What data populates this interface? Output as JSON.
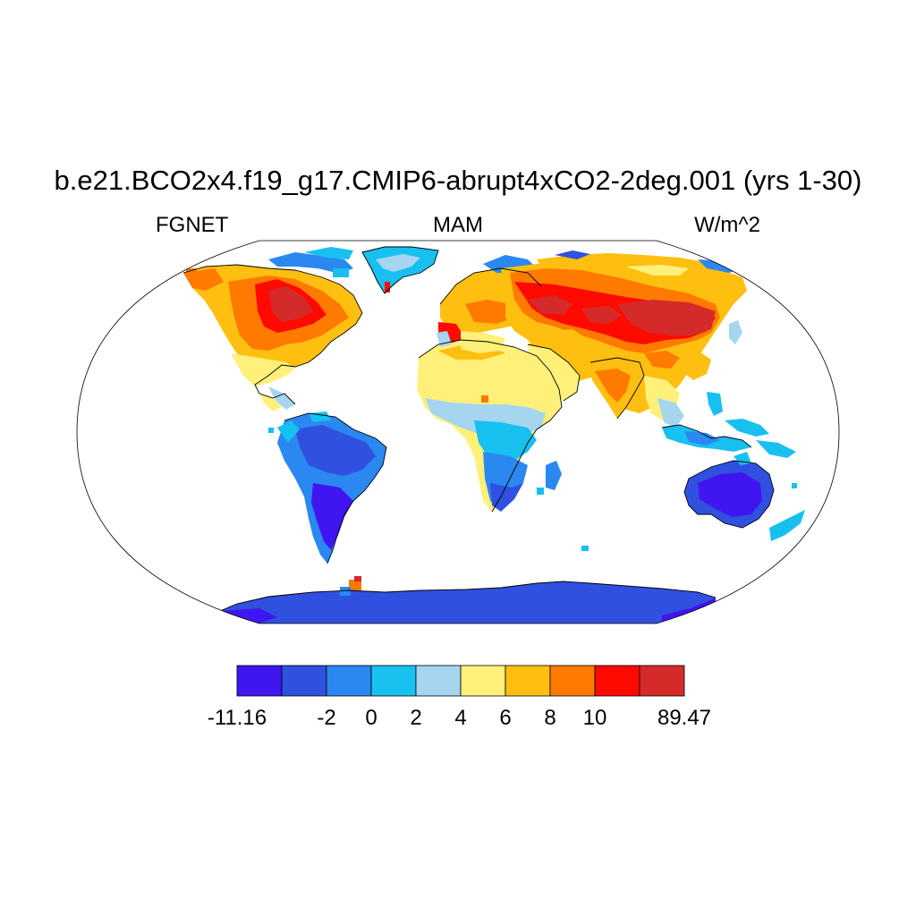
{
  "title": "b.e21.BCO2x4.f19_g17.CMIP6-abrupt4xCO2-2deg.001 (yrs 1-30)",
  "left_label": "FGNET",
  "center_label": "MAM",
  "right_label": "W/m^2",
  "colorbar": {
    "colors": [
      "#4016f0",
      "#3050e0",
      "#2a88f0",
      "#18c0f0",
      "#a6d5f0",
      "#fff07a",
      "#ffbf10",
      "#ff7a00",
      "#ff0a00",
      "#d42a2a"
    ],
    "labels": [
      "-11.16",
      "-2",
      "0",
      "2",
      "4",
      "6",
      "8",
      "10",
      "89.47"
    ]
  },
  "map_regions": [
    {
      "name": "antarctica",
      "value": "-6"
    },
    {
      "name": "australia",
      "value": "-6"
    },
    {
      "name": "south-america-south",
      "value": "-6"
    },
    {
      "name": "south-america",
      "value": "-3"
    },
    {
      "name": "southern-africa",
      "value": "-3"
    },
    {
      "name": "central-africa",
      "value": "0"
    },
    {
      "name": "north-africa",
      "value": "5"
    },
    {
      "name": "arabia",
      "value": "5"
    },
    {
      "name": "north-america",
      "value": "9"
    },
    {
      "name": "central-canada",
      "value": "20"
    },
    {
      "name": "europe",
      "value": "7"
    },
    {
      "name": "russia",
      "value": "11"
    },
    {
      "name": "central-asia",
      "value": "20"
    },
    {
      "name": "india",
      "value": "7"
    },
    {
      "name": "greenland",
      "value": "1"
    },
    {
      "name": "maritime-continent",
      "value": "1"
    }
  ]
}
